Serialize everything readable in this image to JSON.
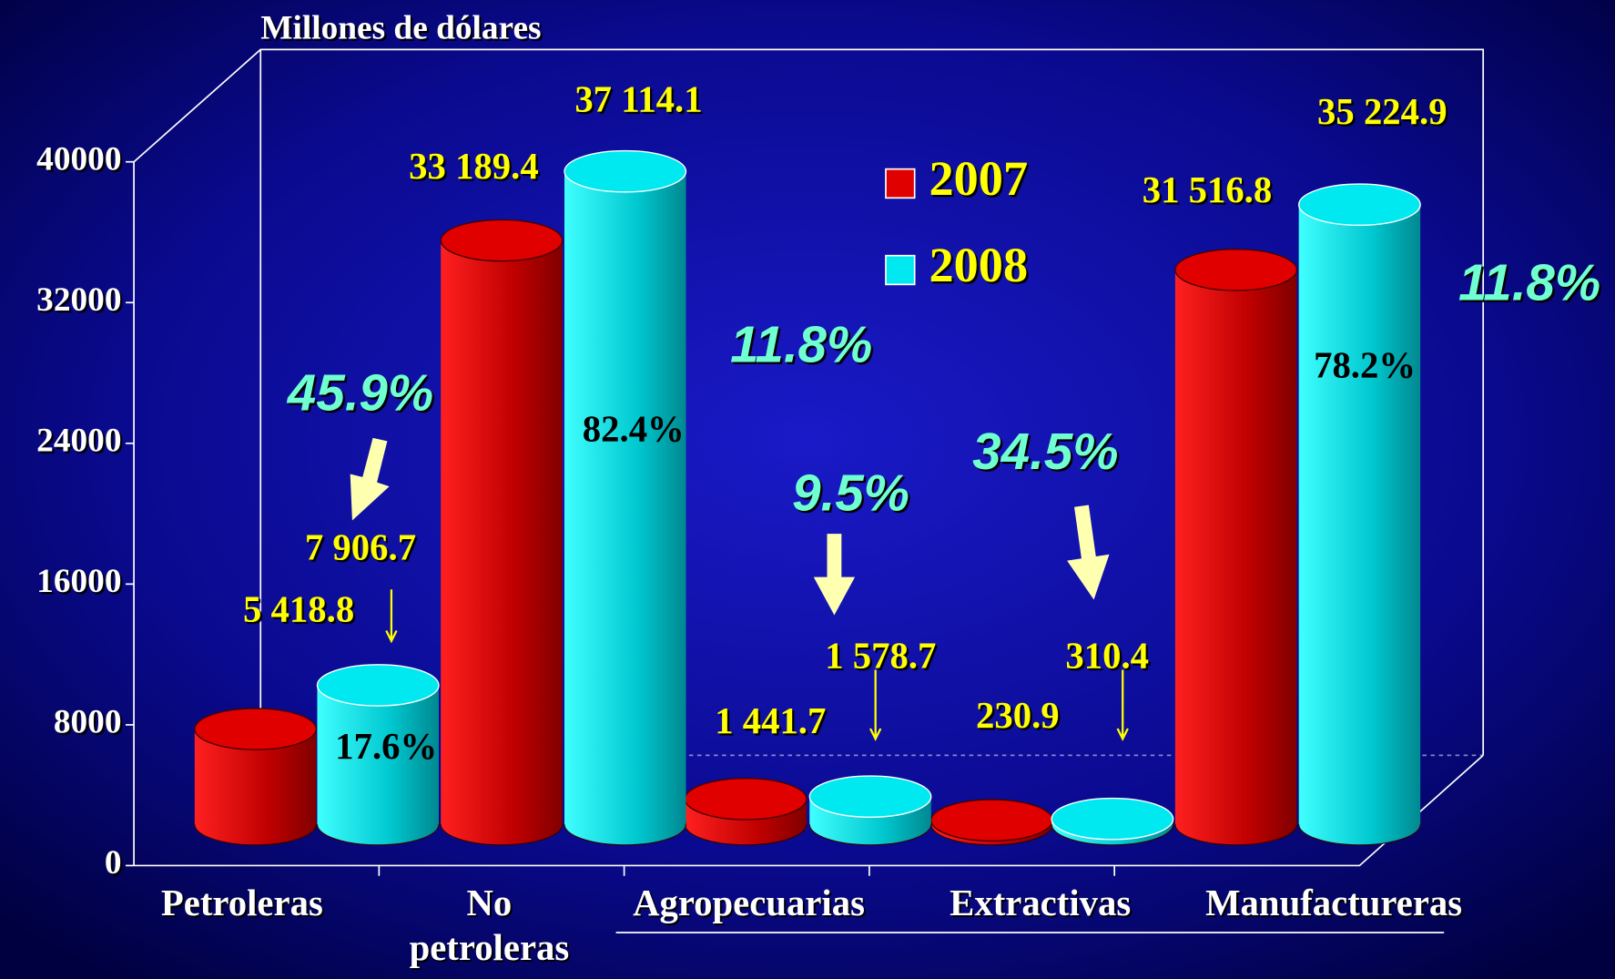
{
  "chart_data": {
    "type": "bar3d",
    "y_axis_title": "Millones de dólares",
    "categories": [
      "Petroleras",
      "No petroleras",
      "Agropecuarias",
      "Extractivas",
      "Manufactureras"
    ],
    "series": [
      {
        "name": "2007",
        "color": "#e00000",
        "values": [
          5418.8,
          33189.4,
          1441.7,
          230.9,
          31516.8
        ],
        "value_labels": [
          "5 418.8",
          "33 189.4",
          "1 441.7",
          "230.9",
          "31 516.8"
        ]
      },
      {
        "name": "2008",
        "color": "#00e8f0",
        "values": [
          7906.7,
          37114.1,
          1578.7,
          310.4,
          35224.9
        ],
        "value_labels": [
          "7 906.7",
          "37 114.1",
          "1 578.7",
          "310.4",
          "35 224.9"
        ]
      }
    ],
    "share_labels": [
      "17.6%",
      "82.4%",
      null,
      null,
      "78.2%"
    ],
    "growth_labels": [
      "45.9%",
      "11.8%",
      "9.5%",
      "34.5%",
      "11.8%"
    ],
    "ylim": [
      0,
      40000
    ],
    "yticks": [
      0,
      8000,
      16000,
      24000,
      32000,
      40000
    ]
  }
}
